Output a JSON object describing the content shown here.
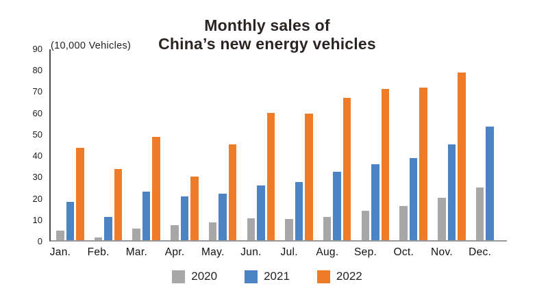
{
  "title": {
    "line1": "Monthly sales of",
    "line2": "China’s new energy vehicles"
  },
  "chart_data": {
    "type": "bar",
    "title": "Monthly sales of China’s new energy vehicles",
    "unit_label": "(10,000 Vehicles)",
    "categories": [
      "Jan.",
      "Feb.",
      "Mar.",
      "Apr.",
      "May.",
      "Jun.",
      "Jul.",
      "Aug.",
      "Sep.",
      "Oct.",
      "Nov.",
      "Dec."
    ],
    "series": [
      {
        "name": "2020",
        "color": "#a7a7a7",
        "values": [
          4.4,
          1.3,
          5.3,
          7.2,
          8.2,
          10.4,
          9.8,
          10.9,
          13.8,
          16.0,
          20.0,
          24.8
        ]
      },
      {
        "name": "2021",
        "color": "#4c83c4",
        "values": [
          17.9,
          11.0,
          22.6,
          20.6,
          21.7,
          25.6,
          27.1,
          32.1,
          35.7,
          38.3,
          45.0,
          53.1
        ]
      },
      {
        "name": "2022",
        "color": "#ee7b28",
        "values": [
          43.1,
          33.4,
          48.4,
          29.9,
          44.7,
          59.6,
          59.3,
          66.6,
          70.8,
          71.4,
          78.6,
          null
        ]
      }
    ],
    "ylim": [
      0,
      90
    ],
    "ytick_step": 10,
    "grid": false,
    "legend_position": "bottom",
    "axis_colors": {
      "y_axis_line": "#4a4a4c",
      "x_axis_line": "#95979a"
    }
  }
}
